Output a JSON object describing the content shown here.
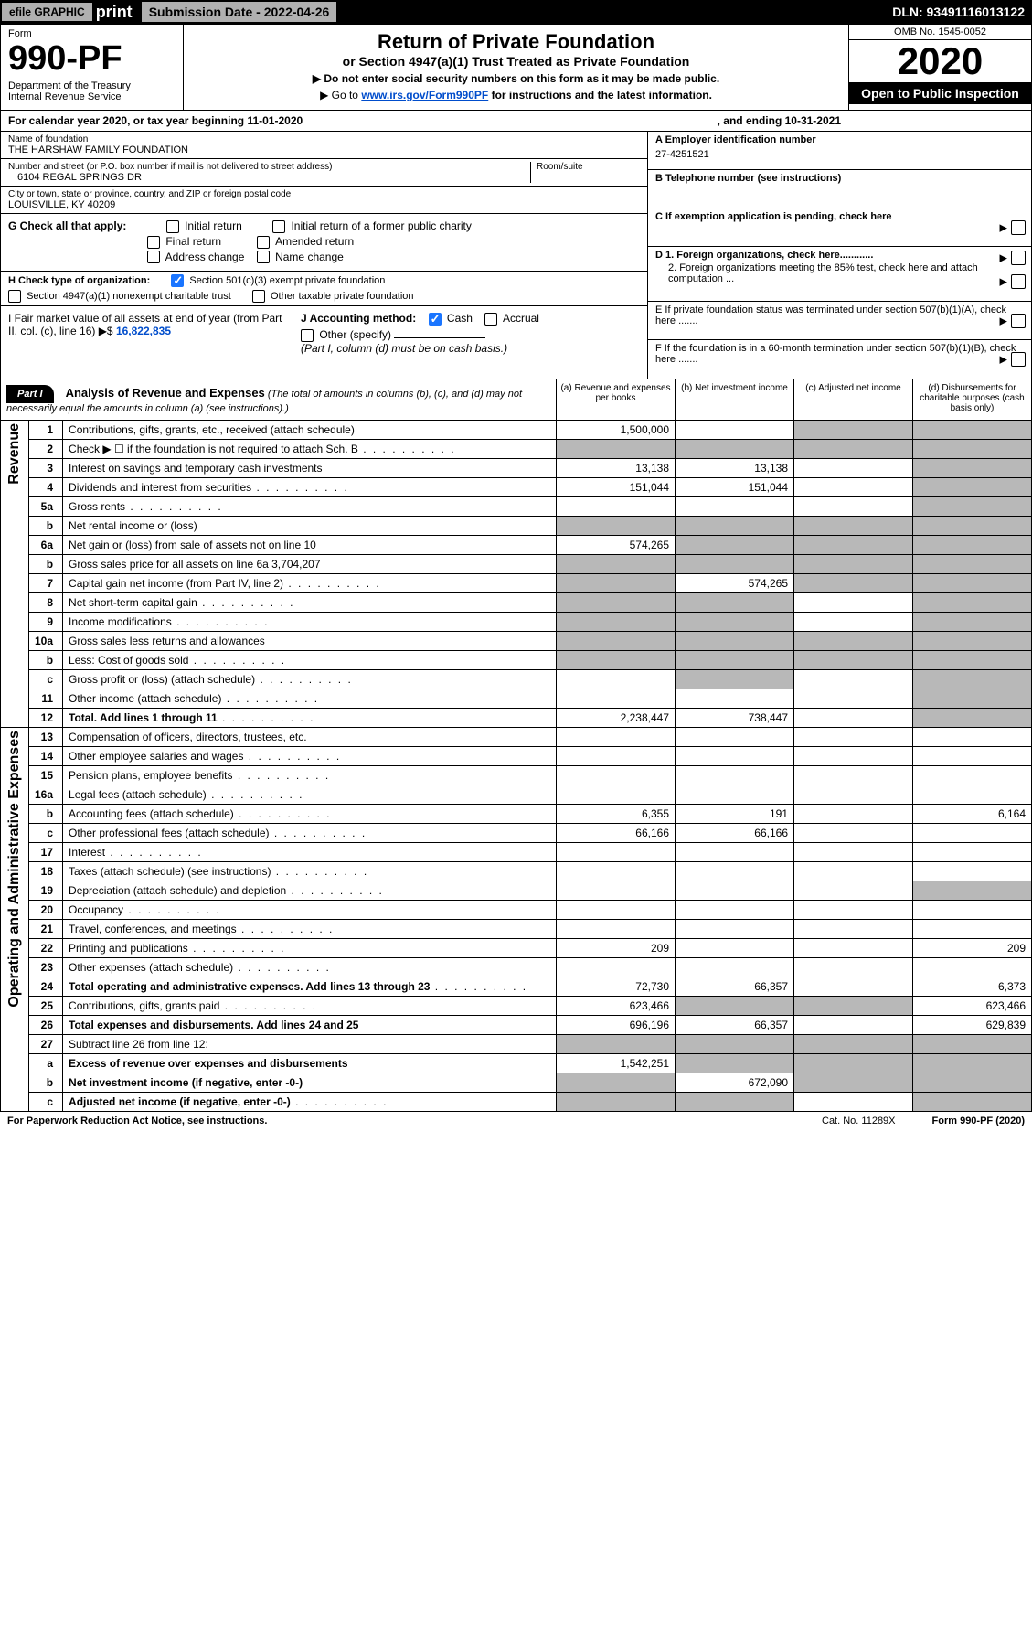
{
  "topbar": {
    "efile": "efile GRAPHIC",
    "print": "print",
    "subdate_label": "Submission Date - 2022-04-26",
    "dln": "DLN: 93491116013122"
  },
  "header": {
    "form_label": "Form",
    "form_num": "990-PF",
    "dept": "Department of the Treasury\nInternal Revenue Service",
    "title": "Return of Private Foundation",
    "subtitle": "or Section 4947(a)(1) Trust Treated as Private Foundation",
    "instr1": "▶ Do not enter social security numbers on this form as it may be made public.",
    "instr2_pre": "▶ Go to ",
    "instr2_link": "www.irs.gov/Form990PF",
    "instr2_post": " for instructions and the latest information.",
    "omb": "OMB No. 1545-0052",
    "year": "2020",
    "openpub": "Open to Public Inspection"
  },
  "calrow": {
    "text": "For calendar year 2020, or tax year beginning 11-01-2020",
    "end": ", and ending 10-31-2021"
  },
  "info": {
    "name_label": "Name of foundation",
    "name": "THE HARSHAW FAMILY FOUNDATION",
    "addr_label": "Number and street (or P.O. box number if mail is not delivered to street address)",
    "addr": "6104 REGAL SPRINGS DR",
    "room_label": "Room/suite",
    "city_label": "City or town, state or province, country, and ZIP or foreign postal code",
    "city": "LOUISVILLE, KY  40209",
    "a_label": "A Employer identification number",
    "a_val": "27-4251521",
    "b_label": "B Telephone number (see instructions)",
    "c_label": "C If exemption application is pending, check here",
    "d1_label": "D 1. Foreign organizations, check here............",
    "d2_label": "2. Foreign organizations meeting the 85% test, check here and attach computation ...",
    "e_label": "E  If private foundation status was terminated under section 507(b)(1)(A), check here .......",
    "f_label": "F  If the foundation is in a 60-month termination under section 507(b)(1)(B), check here .......",
    "g_label": "G Check all that apply:",
    "g_opts": [
      "Initial return",
      "Initial return of a former public charity",
      "Final return",
      "Amended return",
      "Address change",
      "Name change"
    ],
    "h_label": "H Check type of organization:",
    "h_opt1": "Section 501(c)(3) exempt private foundation",
    "h_opt2": "Section 4947(a)(1) nonexempt charitable trust",
    "h_opt3": "Other taxable private foundation",
    "i_label": "I Fair market value of all assets at end of year (from Part II, col. (c), line 16)  ▶$  ",
    "i_val": "16,822,835",
    "j_label": "J Accounting method:",
    "j_cash": "Cash",
    "j_accrual": "Accrual",
    "j_other": "Other (specify)",
    "j_note": "(Part I, column (d) must be on cash basis.)"
  },
  "part1": {
    "label": "Part I",
    "title": "Analysis of Revenue and Expenses",
    "note": "(The total of amounts in columns (b), (c), and (d) may not necessarily equal the amounts in column (a) (see instructions).)",
    "col_a": "(a)   Revenue and expenses per books",
    "col_b": "(b)   Net investment income",
    "col_c": "(c)   Adjusted net income",
    "col_d": "(d)   Disbursements for charitable purposes (cash basis only)"
  },
  "sidelabels": {
    "revenue": "Revenue",
    "opex": "Operating and Administrative Expenses"
  },
  "rows": [
    {
      "n": "1",
      "d": "Contributions, gifts, grants, etc., received (attach schedule)",
      "a": "1,500,000",
      "b": "",
      "c": "g",
      "dcol": "g"
    },
    {
      "n": "2",
      "d": "Check ▶ ☐ if the foundation is not required to attach Sch. B",
      "dots": true,
      "a": "g",
      "b": "g",
      "c": "g",
      "dcol": "g"
    },
    {
      "n": "3",
      "d": "Interest on savings and temporary cash investments",
      "a": "13,138",
      "b": "13,138",
      "c": "",
      "dcol": "g"
    },
    {
      "n": "4",
      "d": "Dividends and interest from securities",
      "dots": true,
      "a": "151,044",
      "b": "151,044",
      "c": "",
      "dcol": "g"
    },
    {
      "n": "5a",
      "d": "Gross rents",
      "dots": true,
      "a": "",
      "b": "",
      "c": "",
      "dcol": "g"
    },
    {
      "n": "b",
      "d": "Net rental income or (loss)",
      "a": "g",
      "b": "g",
      "c": "g",
      "dcol": "g"
    },
    {
      "n": "6a",
      "d": "Net gain or (loss) from sale of assets not on line 10",
      "a": "574,265",
      "b": "g",
      "c": "g",
      "dcol": "g"
    },
    {
      "n": "b",
      "d": "Gross sales price for all assets on line 6a            3,704,207",
      "a": "g",
      "b": "g",
      "c": "g",
      "dcol": "g"
    },
    {
      "n": "7",
      "d": "Capital gain net income (from Part IV, line 2)",
      "dots": true,
      "a": "g",
      "b": "574,265",
      "c": "g",
      "dcol": "g"
    },
    {
      "n": "8",
      "d": "Net short-term capital gain",
      "dots": true,
      "a": "g",
      "b": "g",
      "c": "",
      "dcol": "g"
    },
    {
      "n": "9",
      "d": "Income modifications",
      "dots": true,
      "a": "g",
      "b": "g",
      "c": "",
      "dcol": "g"
    },
    {
      "n": "10a",
      "d": "Gross sales less returns and allowances",
      "a": "g",
      "b": "g",
      "c": "g",
      "dcol": "g"
    },
    {
      "n": "b",
      "d": "Less: Cost of goods sold",
      "dots": true,
      "a": "g",
      "b": "g",
      "c": "g",
      "dcol": "g"
    },
    {
      "n": "c",
      "d": "Gross profit or (loss) (attach schedule)",
      "dots": true,
      "a": "",
      "b": "g",
      "c": "",
      "dcol": "g"
    },
    {
      "n": "11",
      "d": "Other income (attach schedule)",
      "dots": true,
      "a": "",
      "b": "",
      "c": "",
      "dcol": "g"
    },
    {
      "n": "12",
      "d": "Total. Add lines 1 through 11",
      "dots": true,
      "bold": true,
      "a": "2,238,447",
      "b": "738,447",
      "c": "",
      "dcol": "g"
    },
    {
      "n": "13",
      "d": "Compensation of officers, directors, trustees, etc.",
      "a": "",
      "b": "",
      "c": "",
      "dcol": ""
    },
    {
      "n": "14",
      "d": "Other employee salaries and wages",
      "dots": true,
      "a": "",
      "b": "",
      "c": "",
      "dcol": ""
    },
    {
      "n": "15",
      "d": "Pension plans, employee benefits",
      "dots": true,
      "a": "",
      "b": "",
      "c": "",
      "dcol": ""
    },
    {
      "n": "16a",
      "d": "Legal fees (attach schedule)",
      "dots": true,
      "a": "",
      "b": "",
      "c": "",
      "dcol": ""
    },
    {
      "n": "b",
      "d": "Accounting fees (attach schedule)",
      "dots": true,
      "a": "6,355",
      "b": "191",
      "c": "",
      "dcol": "6,164"
    },
    {
      "n": "c",
      "d": "Other professional fees (attach schedule)",
      "dots": true,
      "a": "66,166",
      "b": "66,166",
      "c": "",
      "dcol": ""
    },
    {
      "n": "17",
      "d": "Interest",
      "dots": true,
      "a": "",
      "b": "",
      "c": "",
      "dcol": ""
    },
    {
      "n": "18",
      "d": "Taxes (attach schedule) (see instructions)",
      "dots": true,
      "a": "",
      "b": "",
      "c": "",
      "dcol": ""
    },
    {
      "n": "19",
      "d": "Depreciation (attach schedule) and depletion",
      "dots": true,
      "a": "",
      "b": "",
      "c": "",
      "dcol": "g"
    },
    {
      "n": "20",
      "d": "Occupancy",
      "dots": true,
      "a": "",
      "b": "",
      "c": "",
      "dcol": ""
    },
    {
      "n": "21",
      "d": "Travel, conferences, and meetings",
      "dots": true,
      "a": "",
      "b": "",
      "c": "",
      "dcol": ""
    },
    {
      "n": "22",
      "d": "Printing and publications",
      "dots": true,
      "a": "209",
      "b": "",
      "c": "",
      "dcol": "209"
    },
    {
      "n": "23",
      "d": "Other expenses (attach schedule)",
      "dots": true,
      "a": "",
      "b": "",
      "c": "",
      "dcol": ""
    },
    {
      "n": "24",
      "d": "Total operating and administrative expenses. Add lines 13 through 23",
      "dots": true,
      "bold": true,
      "a": "72,730",
      "b": "66,357",
      "c": "",
      "dcol": "6,373"
    },
    {
      "n": "25",
      "d": "Contributions, gifts, grants paid",
      "dots": true,
      "a": "623,466",
      "b": "g",
      "c": "g",
      "dcol": "623,466"
    },
    {
      "n": "26",
      "d": "Total expenses and disbursements. Add lines 24 and 25",
      "bold": true,
      "a": "696,196",
      "b": "66,357",
      "c": "",
      "dcol": "629,839"
    },
    {
      "n": "27",
      "d": "Subtract line 26 from line 12:",
      "a": "g",
      "b": "g",
      "c": "g",
      "dcol": "g"
    },
    {
      "n": "a",
      "d": "Excess of revenue over expenses and disbursements",
      "bold": true,
      "a": "1,542,251",
      "b": "g",
      "c": "g",
      "dcol": "g"
    },
    {
      "n": "b",
      "d": "Net investment income (if negative, enter -0-)",
      "bold": true,
      "a": "g",
      "b": "672,090",
      "c": "g",
      "dcol": "g"
    },
    {
      "n": "c",
      "d": "Adjusted net income (if negative, enter -0-)",
      "dots": true,
      "bold": true,
      "a": "g",
      "b": "g",
      "c": "",
      "dcol": "g"
    }
  ],
  "footer": {
    "left": "For Paperwork Reduction Act Notice, see instructions.",
    "cat": "Cat. No. 11289X",
    "right": "Form 990-PF (2020)"
  }
}
